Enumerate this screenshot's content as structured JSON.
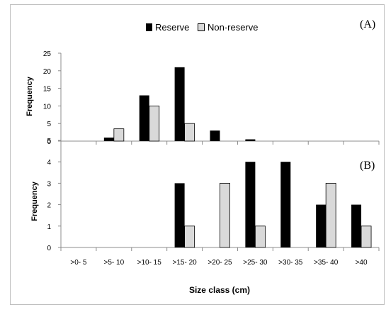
{
  "legend": {
    "items": [
      {
        "label": "Reserve",
        "color": "#000000"
      },
      {
        "label": "Non-reserve",
        "color": "#d9d9d9"
      }
    ],
    "placement": "top-center"
  },
  "panel_labels": [
    "(A)",
    "(B)"
  ],
  "x_axis_title": "Size class (cm)",
  "chart_data": [
    {
      "type": "bar",
      "panel": "(A)",
      "ylabel": "Frequency",
      "ylim": [
        0,
        25
      ],
      "yticks": [
        "0",
        "5",
        "10",
        "15",
        "20",
        "25"
      ],
      "categories": [
        ">0- 5",
        ">5- 10",
        ">10- 15",
        ">15- 20",
        ">20- 25",
        ">25- 30",
        ">30- 35",
        ">35- 40",
        ">40"
      ],
      "series": [
        {
          "name": "Reserve",
          "color": "#000000",
          "values": [
            0,
            1,
            13,
            21,
            3,
            0.5,
            0,
            0,
            0
          ]
        },
        {
          "name": "Non-reserve",
          "color": "#d9d9d9",
          "values": [
            0,
            3.5,
            10,
            5,
            0,
            0,
            0,
            0,
            0
          ]
        }
      ],
      "grid": false
    },
    {
      "type": "bar",
      "panel": "(B)",
      "ylabel": "Frequency",
      "ylim": [
        0,
        5
      ],
      "yticks": [
        "0",
        "1",
        "2",
        "3",
        "4",
        "5"
      ],
      "categories": [
        ">0- 5",
        ">5- 10",
        ">10- 15",
        ">15- 20",
        ">20- 25",
        ">25- 30",
        ">30- 35",
        ">35- 40",
        ">40"
      ],
      "xticks": [
        ">0- 5",
        ">5- 10",
        ">10- 15",
        ">15- 20",
        ">20- 25",
        ">25- 30",
        ">30- 35",
        ">35- 40",
        ">40"
      ],
      "xlabel": "Size class (cm)",
      "series": [
        {
          "name": "Reserve",
          "color": "#000000",
          "values": [
            0,
            0,
            0,
            3,
            0,
            4,
            4,
            2,
            2
          ]
        },
        {
          "name": "Non-reserve",
          "color": "#d9d9d9",
          "values": [
            0,
            0,
            0,
            1,
            3,
            1,
            0,
            3,
            1
          ]
        }
      ],
      "grid": false
    }
  ]
}
